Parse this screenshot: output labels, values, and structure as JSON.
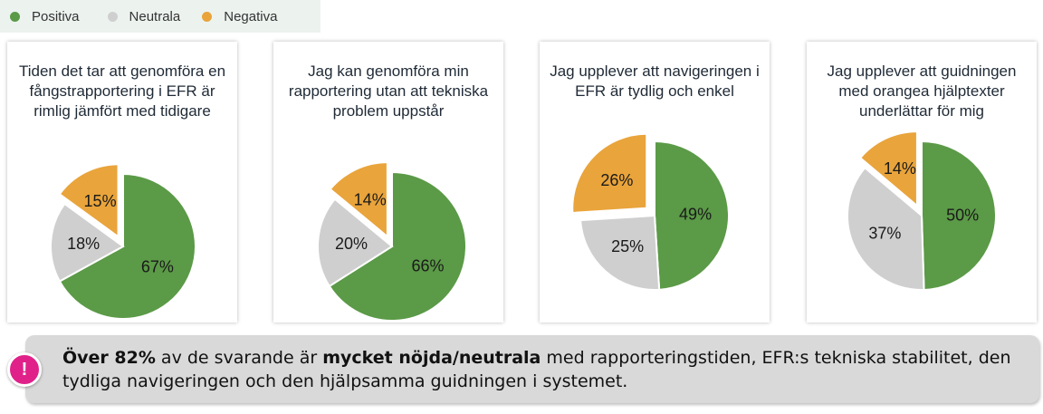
{
  "legend": [
    {
      "label": "Positiva",
      "color": "#5b9a47"
    },
    {
      "label": "Neutrala",
      "color": "#cfcfcf"
    },
    {
      "label": "Negativa",
      "color": "#e9a43b"
    }
  ],
  "chart_data": [
    {
      "type": "pie",
      "title": "Tiden det tar att genomföra en fångstrapportering i EFR är rimlig jämfört med tidigare",
      "categories": [
        "Positiva",
        "Neutrala",
        "Negativa"
      ],
      "values": [
        67,
        18,
        15
      ],
      "labels": [
        "67%",
        "18%",
        "15%"
      ],
      "exploded": [
        "Negativa"
      ]
    },
    {
      "type": "pie",
      "title": "Jag kan genomföra min rapportering utan att tekniska problem uppstår",
      "categories": [
        "Positiva",
        "Neutrala",
        "Negativa"
      ],
      "values": [
        66,
        20,
        14
      ],
      "labels": [
        "66%",
        "20%",
        "14%"
      ],
      "exploded": [
        "Negativa"
      ]
    },
    {
      "type": "pie",
      "title": "Jag upplever att navigeringen i EFR är tydlig och enkel",
      "categories": [
        "Positiva",
        "Neutrala",
        "Negativa"
      ],
      "values": [
        49,
        25,
        26
      ],
      "labels": [
        "49%",
        "25%",
        "26%"
      ],
      "exploded": [
        "Negativa"
      ]
    },
    {
      "type": "pie",
      "title": "Jag upplever att guidningen med orangea hjälptexter underlättar för mig",
      "categories": [
        "Positiva",
        "Neutrala",
        "Negativa"
      ],
      "values": [
        50,
        37,
        14
      ],
      "labels": [
        "50%",
        "37%",
        "14%"
      ],
      "exploded": [
        "Negativa"
      ]
    }
  ],
  "callout": {
    "icon": "exclamation-icon",
    "icon_color": "#e0218a",
    "part1_bold": "Över 82%",
    "part2": " av de svarande är ",
    "part3_bold": "mycket nöjda/neutrala",
    "part4": " med rapporteringstiden, EFR:s tekniska stabilitet, den tydliga navigeringen och den hjälpsamma guidningen i systemet."
  }
}
